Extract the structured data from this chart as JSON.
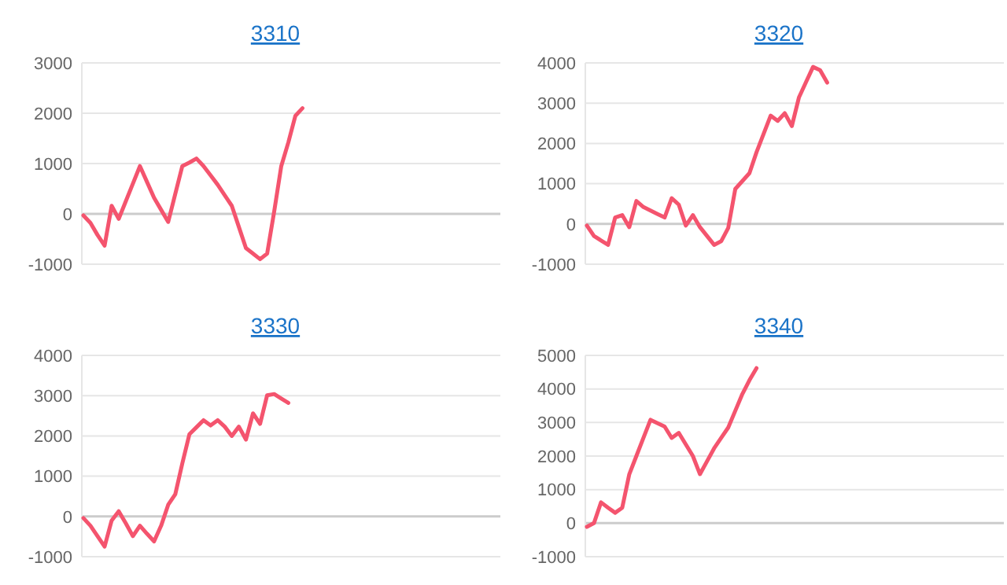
{
  "chart_data": [
    {
      "type": "line",
      "title": "3310",
      "categories": [
        null,
        null,
        null,
        null,
        null,
        null,
        null,
        null,
        null,
        null,
        null,
        null,
        null,
        null,
        null,
        null,
        null,
        null,
        null,
        null,
        null,
        null,
        null,
        null,
        null,
        null,
        null,
        null,
        null,
        null,
        null,
        null,
        null,
        null,
        null,
        null,
        null,
        null,
        null,
        null,
        null,
        null,
        null,
        null,
        null,
        null,
        null,
        null,
        null,
        null,
        null,
        null,
        null,
        null,
        null,
        null,
        null,
        null,
        null,
        null
      ],
      "ylim": [
        -1000,
        3000
      ],
      "yticks": [
        -1000,
        0,
        1000,
        2000,
        3000
      ],
      "grid": "y",
      "tick_labels": "y",
      "marker": "none",
      "line_style": "solid",
      "series": [
        {
          "color": "#f4546e",
          "values": [
            -30,
            -180,
            -420,
            -630,
            160,
            -100,
            250,
            600,
            950,
            635,
            320,
            80,
            -160,
            395,
            950,
            1020,
            1100,
            950,
            765,
            580,
            370,
            160,
            -260,
            -680,
            -790,
            -900,
            -790,
            50,
            950,
            1420,
            1950,
            2100,
            null,
            null,
            null,
            null,
            null,
            null,
            null,
            null,
            null,
            null,
            null,
            null,
            null,
            null,
            null,
            null,
            null,
            null,
            null,
            null,
            null,
            null,
            null,
            null,
            null,
            null,
            null,
            null
          ]
        }
      ]
    },
    {
      "type": "line",
      "title": "3320",
      "categories": [
        null,
        null,
        null,
        null,
        null,
        null,
        null,
        null,
        null,
        null,
        null,
        null,
        null,
        null,
        null,
        null,
        null,
        null,
        null,
        null,
        null,
        null,
        null,
        null,
        null,
        null,
        null,
        null,
        null,
        null,
        null,
        null,
        null,
        null,
        null,
        null,
        null,
        null,
        null,
        null,
        null,
        null,
        null,
        null,
        null,
        null,
        null,
        null,
        null,
        null,
        null,
        null,
        null,
        null,
        null,
        null,
        null,
        null,
        null,
        null
      ],
      "ylim": [
        -1000,
        4000
      ],
      "yticks": [
        -1000,
        0,
        1000,
        2000,
        3000,
        4000
      ],
      "grid": "y",
      "tick_labels": "y",
      "marker": "none",
      "line_style": "solid",
      "series": [
        {
          "color": "#f4546e",
          "values": [
            -40,
            -300,
            -410,
            -520,
            160,
            220,
            -80,
            570,
            420,
            333,
            247,
            160,
            640,
            480,
            -40,
            220,
            -80,
            -300,
            -520,
            -430,
            -100,
            870,
            1065,
            1260,
            1780,
            2235,
            2690,
            2560,
            2750,
            2430,
            3140,
            3520,
            3900,
            3820,
            3510,
            null,
            null,
            null,
            null,
            null,
            null,
            null,
            null,
            null,
            null,
            null,
            null,
            null,
            null,
            null,
            null,
            null,
            null,
            null,
            null,
            null,
            null,
            null,
            null,
            null
          ]
        }
      ]
    },
    {
      "type": "line",
      "title": "3330",
      "categories": [
        null,
        null,
        null,
        null,
        null,
        null,
        null,
        null,
        null,
        null,
        null,
        null,
        null,
        null,
        null,
        null,
        null,
        null,
        null,
        null,
        null,
        null,
        null,
        null,
        null,
        null,
        null,
        null,
        null,
        null,
        null,
        null,
        null,
        null,
        null,
        null,
        null,
        null,
        null,
        null,
        null,
        null,
        null,
        null,
        null,
        null,
        null,
        null,
        null,
        null,
        null,
        null,
        null,
        null,
        null,
        null,
        null,
        null,
        null,
        null
      ],
      "ylim": [
        -1000,
        4000
      ],
      "yticks": [
        -1000,
        0,
        1000,
        2000,
        3000,
        4000
      ],
      "grid": "y",
      "tick_labels": "y",
      "marker": "none",
      "line_style": "solid",
      "series": [
        {
          "color": "#f4546e",
          "values": [
            -40,
            -230,
            -490,
            -750,
            -100,
            130,
            -170,
            -490,
            -230,
            -430,
            -620,
            -230,
            290,
            550,
            1320,
            2040,
            2215,
            2390,
            2260,
            2390,
            2230,
            2000,
            2230,
            1910,
            2560,
            2300,
            3010,
            3040,
            2930,
            2820,
            null,
            null,
            null,
            null,
            null,
            null,
            null,
            null,
            null,
            null,
            null,
            null,
            null,
            null,
            null,
            null,
            null,
            null,
            null,
            null,
            null,
            null,
            null,
            null,
            null,
            null,
            null,
            null,
            null,
            null
          ]
        }
      ]
    },
    {
      "type": "line",
      "title": "3340",
      "categories": [
        null,
        null,
        null,
        null,
        null,
        null,
        null,
        null,
        null,
        null,
        null,
        null,
        null,
        null,
        null,
        null,
        null,
        null,
        null,
        null,
        null,
        null,
        null,
        null,
        null,
        null,
        null,
        null,
        null,
        null,
        null,
        null,
        null,
        null,
        null,
        null,
        null,
        null,
        null,
        null,
        null,
        null,
        null,
        null,
        null,
        null,
        null,
        null,
        null,
        null,
        null,
        null,
        null,
        null,
        null,
        null,
        null,
        null,
        null,
        null
      ],
      "ylim": [
        -1000,
        5000
      ],
      "yticks": [
        -1000,
        0,
        1000,
        2000,
        3000,
        4000,
        5000
      ],
      "grid": "y",
      "tick_labels": "y",
      "marker": "none",
      "line_style": "solid",
      "series": [
        {
          "color": "#f4546e",
          "values": [
            -110,
            0,
            620,
            460,
            310,
            460,
            1460,
            2000,
            2540,
            3080,
            2980,
            2880,
            2540,
            2690,
            2345,
            2000,
            1460,
            1845,
            2230,
            2540,
            2850,
            3350,
            3850,
            4260,
            4620,
            null,
            null,
            null,
            null,
            null,
            null,
            null,
            null,
            null,
            null,
            null,
            null,
            null,
            null,
            null,
            null,
            null,
            null,
            null,
            null,
            null,
            null,
            null,
            null,
            null,
            null,
            null,
            null,
            null,
            null,
            null,
            null,
            null,
            null,
            null
          ]
        }
      ]
    }
  ]
}
